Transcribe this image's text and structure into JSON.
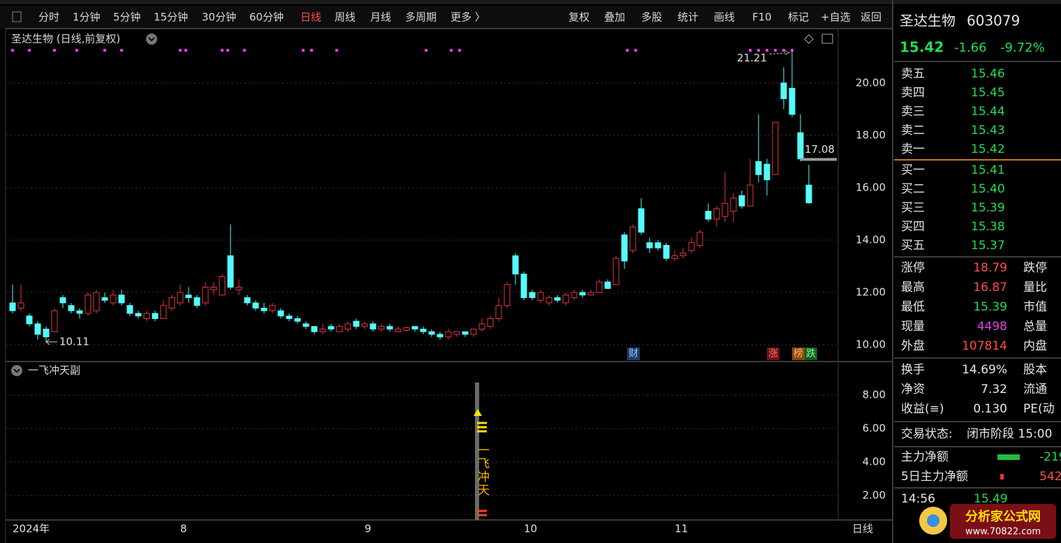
{
  "toolbar": {
    "left": [
      "分时",
      "1分钟",
      "5分钟",
      "15分钟",
      "30分钟",
      "60分钟",
      "日线",
      "周线",
      "月线",
      "多周期",
      "更多 〉"
    ],
    "right": [
      "复权",
      "叠加",
      "多股",
      "统计",
      "画线",
      "F10",
      "标记",
      "+自选",
      "返回"
    ]
  },
  "chart_data": {
    "type": "candlestick",
    "title": "圣达生物 (日线,前复权)",
    "period_label": "日线",
    "categories": [
      "2024年",
      null,
      null,
      null,
      null,
      null,
      null,
      null,
      null,
      null,
      null,
      null,
      null,
      null,
      null,
      null,
      null,
      null,
      null,
      null,
      "8",
      null,
      null,
      null,
      null,
      null,
      null,
      null,
      null,
      null,
      null,
      null,
      null,
      null,
      null,
      null,
      null,
      null,
      null,
      null,
      null,
      null,
      "9",
      null,
      null,
      null,
      null,
      null,
      null,
      null,
      null,
      null,
      null,
      null,
      null,
      null,
      null,
      null,
      null,
      null,
      null,
      "10",
      null,
      null,
      null,
      null,
      null,
      null,
      null,
      null,
      null,
      null,
      null,
      null,
      null,
      null,
      null,
      null,
      null,
      "11",
      null,
      null,
      null,
      null,
      null,
      null,
      null,
      null,
      null,
      null,
      null,
      null,
      null,
      null,
      null,
      null
    ],
    "open": [
      11.6,
      11.4,
      11.1,
      10.8,
      10.6,
      10.5,
      11.8,
      11.5,
      11.3,
      11.2,
      11.3,
      11.8,
      11.6,
      11.9,
      11.5,
      11.2,
      11.0,
      11.2,
      11.0,
      11.4,
      11.6,
      11.9,
      11.8,
      11.6,
      12.1,
      11.9,
      13.4,
      12.1,
      11.8,
      11.6,
      11.4,
      11.3,
      11.3,
      11.1,
      11.0,
      10.8,
      10.7,
      10.5,
      10.7,
      10.5,
      10.6,
      10.9,
      10.7,
      10.8,
      10.6,
      10.7,
      10.5,
      10.55,
      10.7,
      10.6,
      10.5,
      10.4,
      10.3,
      10.4,
      10.5,
      10.4,
      10.6,
      10.7,
      11.0,
      11.5,
      13.4,
      12.7,
      12.0,
      11.7,
      11.6,
      11.8,
      11.6,
      11.8,
      12.0,
      11.9,
      12.0,
      12.4,
      12.3,
      14.2,
      13.6,
      15.2,
      13.9,
      13.9,
      13.8,
      13.3,
      13.4,
      13.6,
      13.8,
      15.1,
      14.8,
      14.9,
      15.1,
      15.7,
      15.3,
      17.0,
      16.9,
      16.5,
      20.0,
      19.8,
      18.1,
      16.1
    ],
    "high": [
      12.3,
      12.3,
      11.2,
      10.9,
      10.7,
      11.4,
      11.9,
      11.6,
      11.4,
      12.0,
      12.1,
      12.0,
      12.1,
      12.1,
      11.6,
      11.3,
      11.3,
      11.3,
      11.7,
      11.9,
      12.3,
      12.2,
      11.9,
      12.4,
      12.4,
      12.7,
      14.6,
      12.5,
      11.9,
      11.7,
      11.6,
      11.6,
      11.4,
      11.2,
      11.1,
      10.9,
      10.7,
      10.8,
      10.8,
      10.8,
      10.9,
      11.0,
      10.9,
      10.9,
      10.8,
      10.8,
      10.7,
      10.7,
      10.7,
      10.7,
      10.6,
      10.5,
      10.6,
      10.5,
      10.5,
      10.6,
      11.0,
      11.1,
      11.8,
      12.4,
      13.5,
      12.8,
      12.1,
      12.1,
      11.9,
      11.9,
      12.0,
      12.1,
      12.1,
      12.1,
      12.5,
      12.5,
      13.4,
      14.3,
      14.6,
      15.6,
      14.1,
      14.0,
      13.9,
      13.6,
      13.7,
      14.1,
      14.4,
      15.4,
      15.3,
      16.6,
      15.8,
      15.9,
      17.1,
      18.8,
      17.1,
      18.5,
      20.6,
      21.21,
      18.8,
      16.87
    ],
    "low": [
      11.2,
      11.3,
      10.7,
      10.2,
      10.11,
      10.5,
      11.4,
      11.2,
      11.0,
      11.1,
      11.2,
      11.6,
      11.5,
      11.5,
      11.1,
      11.0,
      10.9,
      10.9,
      11.0,
      11.3,
      11.5,
      11.6,
      11.4,
      11.5,
      11.9,
      11.9,
      12.1,
      11.9,
      11.5,
      11.3,
      11.2,
      11.2,
      11.0,
      10.9,
      10.8,
      10.6,
      10.4,
      10.4,
      10.5,
      10.5,
      10.5,
      10.6,
      10.6,
      10.5,
      10.5,
      10.5,
      10.5,
      10.5,
      10.5,
      10.4,
      10.3,
      10.2,
      10.2,
      10.3,
      10.3,
      10.3,
      10.5,
      10.6,
      10.9,
      11.4,
      12.3,
      11.7,
      11.7,
      11.6,
      11.5,
      11.6,
      11.5,
      11.7,
      11.8,
      11.9,
      12.0,
      12.2,
      12.3,
      12.9,
      13.5,
      14.2,
      13.5,
      13.6,
      13.2,
      13.2,
      13.3,
      13.5,
      13.7,
      14.7,
      14.5,
      14.7,
      14.7,
      15.2,
      15.3,
      16.2,
      15.7,
      16.5,
      19.0,
      18.7,
      17.0,
      15.39
    ],
    "close": [
      11.3,
      11.6,
      10.8,
      10.4,
      10.3,
      11.3,
      11.6,
      11.3,
      11.2,
      11.9,
      12.0,
      11.7,
      11.9,
      11.6,
      11.2,
      11.1,
      11.2,
      11.0,
      11.5,
      11.8,
      12.0,
      11.8,
      11.5,
      12.2,
      12.2,
      12.6,
      12.2,
      12.2,
      11.6,
      11.4,
      11.3,
      11.5,
      11.1,
      11.0,
      10.9,
      10.7,
      10.5,
      10.6,
      10.6,
      10.7,
      10.8,
      10.7,
      10.8,
      10.6,
      10.7,
      10.6,
      10.6,
      10.65,
      10.6,
      10.5,
      10.4,
      10.3,
      10.5,
      10.5,
      10.4,
      10.6,
      10.8,
      11.0,
      11.5,
      12.3,
      12.7,
      11.8,
      11.8,
      12.0,
      11.8,
      11.7,
      11.9,
      12.0,
      11.9,
      12.0,
      12.4,
      12.15,
      13.3,
      13.2,
      14.5,
      14.3,
      13.7,
      13.7,
      13.3,
      13.4,
      13.5,
      13.9,
      14.3,
      14.8,
      15.2,
      15.4,
      15.6,
      15.3,
      16.1,
      16.5,
      16.3,
      18.5,
      19.4,
      18.8,
      17.1,
      15.42
    ],
    "up_color": "#e8383d",
    "down_color": "#54fcfc",
    "ylim": [
      9.36,
      21.97
    ],
    "yticks": [
      {
        "value": 10,
        "label": "10.00"
      },
      {
        "value": 12,
        "label": "12.00"
      },
      {
        "value": 14,
        "label": "14.00"
      },
      {
        "value": 16,
        "label": "16.00"
      },
      {
        "value": 18,
        "label": "18.00"
      },
      {
        "value": 20,
        "label": "20.00"
      }
    ],
    "grid": true,
    "high_marker": 21.21,
    "low_marker": 10.11,
    "price_line": 17.08,
    "event_labels": [
      "财",
      "涨",
      "榜",
      "跌"
    ],
    "subchart": {
      "title": "一飞冲天副",
      "ylim": [
        0.54,
        9.92
      ],
      "yticks": [
        {
          "value": 2,
          "label": "2.00"
        },
        {
          "value": 4,
          "label": "4.00"
        },
        {
          "value": 6,
          "label": "6.00"
        },
        {
          "value": 8,
          "label": "8.00"
        }
      ],
      "signal_value": 8.75,
      "signal_text": "一飞冲天"
    }
  },
  "quote": {
    "name": "圣达生物",
    "code": "603079",
    "price": "15.42",
    "change": "-1.66",
    "change_pct": "-9.72%"
  },
  "order_book": {
    "asks": [
      [
        "卖五",
        "15.46"
      ],
      [
        "卖四",
        "15.45"
      ],
      [
        "卖三",
        "15.44"
      ],
      [
        "卖二",
        "15.43"
      ],
      [
        "卖一",
        "15.42"
      ]
    ],
    "bids": [
      [
        "买一",
        "15.41"
      ],
      [
        "买二",
        "15.40"
      ],
      [
        "买三",
        "15.39"
      ],
      [
        "买四",
        "15.38"
      ],
      [
        "买五",
        "15.37"
      ]
    ]
  },
  "stats": [
    [
      "涨停",
      "18.79",
      "跌停"
    ],
    [
      "最高",
      "16.87",
      "量比"
    ],
    [
      "最低",
      "15.39",
      "市值"
    ],
    [
      "现量",
      "4498",
      "总量"
    ],
    [
      "外盘",
      "107814",
      "内盘"
    ]
  ],
  "stats2": [
    [
      "换手",
      "14.69%",
      "股本"
    ],
    [
      "净资",
      "7.32",
      "流通"
    ],
    [
      "收益(≡)",
      "0.130",
      "PE(动"
    ]
  ],
  "status": [
    "交易状态:",
    "闭市阶段 15:00"
  ],
  "fund_flow": [
    [
      "主力净额",
      "-219"
    ],
    [
      "5日主力净额",
      "542"
    ]
  ],
  "trades": [
    [
      "14:56",
      "15.49"
    ]
  ],
  "watermark": {
    "name": "分析家公式网",
    "url": "www.70822.com"
  }
}
